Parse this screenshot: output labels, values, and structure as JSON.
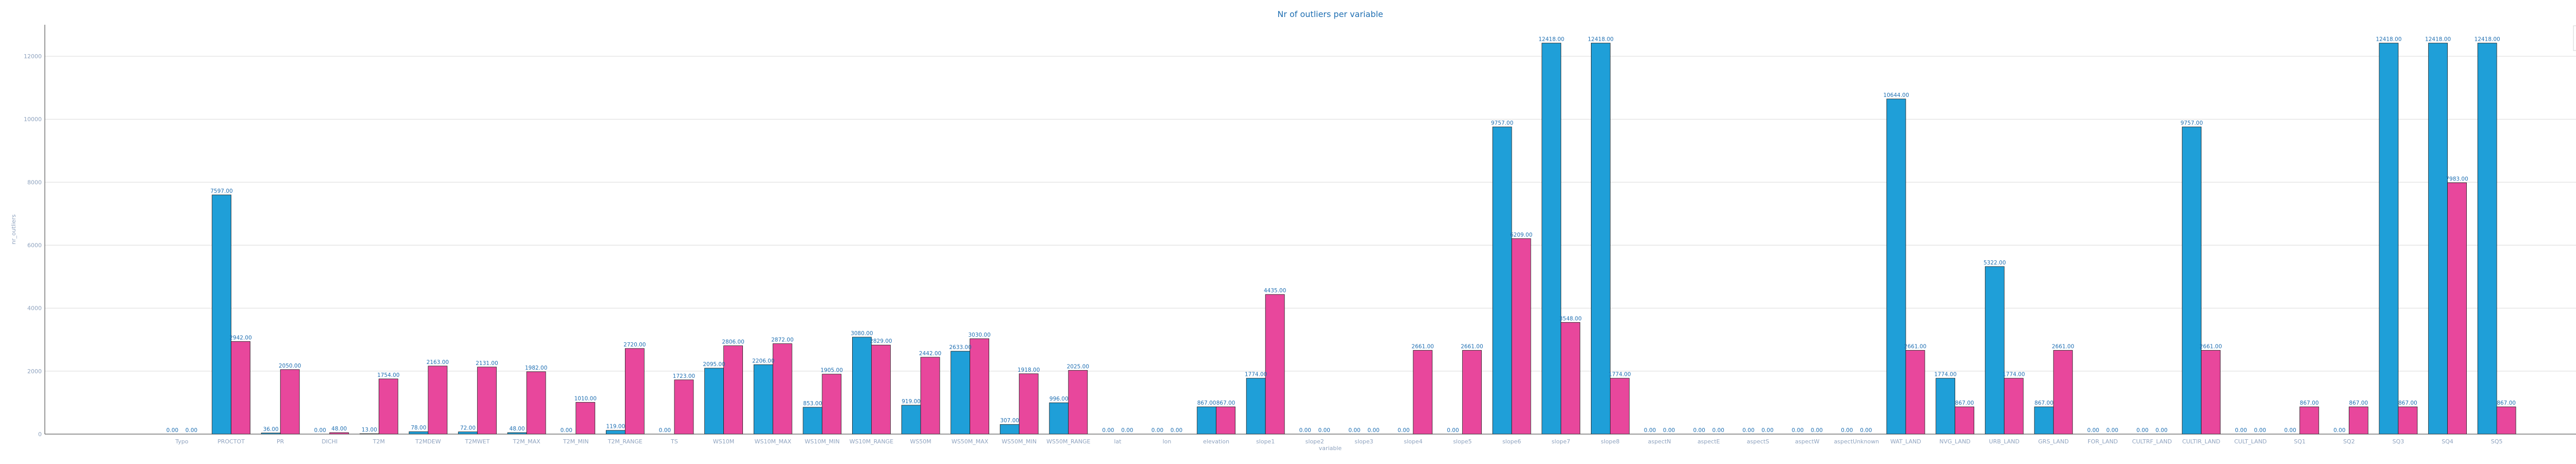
{
  "chart_data": {
    "type": "bar",
    "title": "Nr of outliers per variable",
    "xlabel": "variable",
    "ylabel": "nr_outliers",
    "ylim": [
      0,
      13000
    ],
    "yticks": [
      0,
      2000,
      4000,
      6000,
      8000,
      10000,
      12000
    ],
    "grid": true,
    "legend_position": "top-right",
    "categories": [
      "Typo",
      "PROCTOT",
      "PR",
      "DICHI",
      "T2M",
      "T2MDEW",
      "T2MWET",
      "T2M_MAX",
      "T2M_MIN",
      "T2M_RANGE",
      "TS",
      "WS10M",
      "WS10M_MAX",
      "WS10M_MIN",
      "WS10M_RANGE",
      "WS50M",
      "WS50M_MAX",
      "WS50M_MIN",
      "WS50M_RANGE",
      "lat",
      "lon",
      "elevation",
      "slope1",
      "slope2",
      "slope3",
      "slope4",
      "slope5",
      "slope6",
      "slope7",
      "slope8",
      "aspectN",
      "aspectE",
      "aspectS",
      "aspectW",
      "aspectUnknown",
      "WAT_LAND",
      "NVG_LAND",
      "URB_LAND",
      "GRS_LAND",
      "FOR_LAND",
      "CULTRF_LAND",
      "CULTIR_LAND",
      "CULT_LAND",
      "SQ1",
      "SQ2",
      "SQ3",
      "SQ4",
      "SQ5"
    ],
    "series": [
      {
        "name": "iqr",
        "color": "#1f9fd8",
        "values": [
          0.0,
          7597.0,
          36.0,
          0.0,
          13.0,
          78.0,
          72.0,
          48.0,
          0.0,
          119.0,
          0.0,
          2095.0,
          2206.0,
          853.0,
          3080.0,
          919.0,
          2633.0,
          307.0,
          996.0,
          0.0,
          0.0,
          867.0,
          1774.0,
          0.0,
          0.0,
          0.0,
          0.0,
          9757.0,
          12418.0,
          12418.0,
          0.0,
          0.0,
          0.0,
          0.0,
          0.0,
          10644.0,
          1774.0,
          5322.0,
          867.0,
          0.0,
          0.0,
          9757.0,
          0.0,
          0.0,
          0.0,
          12418.0,
          12418.0,
          12418.0
        ]
      },
      {
        "name": "stdev",
        "color": "#e8479c",
        "values": [
          0.0,
          2942.0,
          2050.0,
          48.0,
          1754.0,
          2163.0,
          2131.0,
          1982.0,
          1010.0,
          2720.0,
          1723.0,
          2806.0,
          2872.0,
          1905.0,
          2829.0,
          2442.0,
          3030.0,
          1918.0,
          2025.0,
          0.0,
          0.0,
          867.0,
          4435.0,
          0.0,
          0.0,
          2661.0,
          2661.0,
          6209.0,
          3548.0,
          1774.0,
          0.0,
          0.0,
          0.0,
          0.0,
          0.0,
          2661.0,
          867.0,
          1774.0,
          2661.0,
          0.0,
          0.0,
          2661.0,
          0.0,
          867.0,
          867.0,
          867.0,
          7983.0,
          867.0
        ]
      }
    ]
  }
}
